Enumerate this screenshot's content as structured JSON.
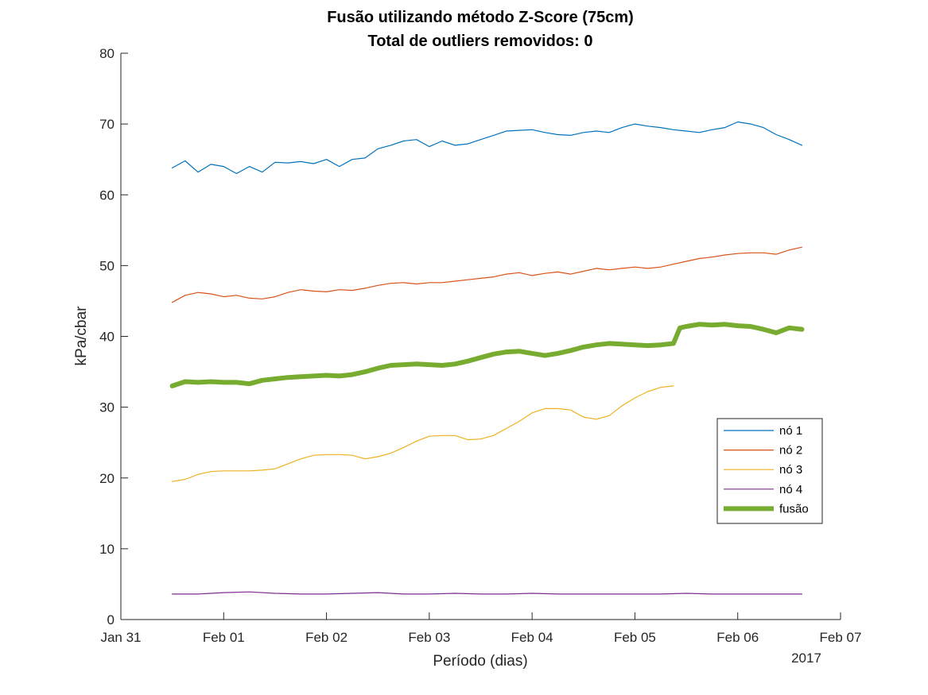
{
  "chart_data": {
    "type": "line",
    "title": [
      "Fusão utilizando método Z-Score (75cm)",
      "Total de outliers removidos: 0"
    ],
    "xlabel": "Período (dias)",
    "ylabel": "kPa/cbar",
    "xlim": [
      "2017-01-31",
      "2017-02-07"
    ],
    "ylim": [
      0,
      80
    ],
    "x_ticks": [
      "Jan 31",
      "Feb 01",
      "Feb 02",
      "Feb 03",
      "Feb 04",
      "Feb 05",
      "Feb 06",
      "Feb 07"
    ],
    "x_tick_dates": [
      "2017-01-31",
      "2017-02-01",
      "2017-02-02",
      "2017-02-03",
      "2017-02-04",
      "2017-02-05",
      "2017-02-06",
      "2017-02-07"
    ],
    "x_year_label": "2017",
    "y_ticks": [
      0,
      10,
      20,
      30,
      40,
      50,
      60,
      70,
      80
    ],
    "grid": false,
    "legend_position": "lower-right",
    "series": [
      {
        "name": "nó 1",
        "color": "#0072BD",
        "width": 1.2,
        "x": [
          "2017-01-31 12:00",
          "2017-01-31 15:00",
          "2017-01-31 18:00",
          "2017-01-31 21:00",
          "2017-02-01 00:00",
          "2017-02-01 03:00",
          "2017-02-01 06:00",
          "2017-02-01 09:00",
          "2017-02-01 12:00",
          "2017-02-01 15:00",
          "2017-02-01 18:00",
          "2017-02-01 21:00",
          "2017-02-02 00:00",
          "2017-02-02 03:00",
          "2017-02-02 06:00",
          "2017-02-02 09:00",
          "2017-02-02 12:00",
          "2017-02-02 15:00",
          "2017-02-02 18:00",
          "2017-02-02 21:00",
          "2017-02-03 00:00",
          "2017-02-03 03:00",
          "2017-02-03 06:00",
          "2017-02-03 09:00",
          "2017-02-03 12:00",
          "2017-02-03 15:00",
          "2017-02-03 18:00",
          "2017-02-03 21:00",
          "2017-02-04 00:00",
          "2017-02-04 03:00",
          "2017-02-04 06:00",
          "2017-02-04 09:00",
          "2017-02-04 12:00",
          "2017-02-04 15:00",
          "2017-02-04 18:00",
          "2017-02-04 21:00",
          "2017-02-05 00:00",
          "2017-02-05 03:00",
          "2017-02-05 06:00",
          "2017-02-05 09:00",
          "2017-02-05 12:00",
          "2017-02-05 15:00",
          "2017-02-05 18:00",
          "2017-02-05 21:00",
          "2017-02-06 00:00",
          "2017-02-06 03:00",
          "2017-02-06 06:00",
          "2017-02-06 09:00",
          "2017-02-06 12:00",
          "2017-02-06 15:00"
        ],
        "y": [
          63.8,
          64.8,
          63.2,
          64.3,
          64.0,
          63.0,
          64.0,
          63.2,
          64.6,
          64.5,
          64.7,
          64.4,
          65.0,
          64.0,
          65.0,
          65.2,
          66.5,
          67.0,
          67.6,
          67.8,
          66.8,
          67.6,
          67.0,
          67.2,
          67.8,
          68.4,
          69.0,
          69.1,
          69.2,
          68.8,
          68.5,
          68.4,
          68.8,
          69.0,
          68.8,
          69.5,
          70.0,
          69.7,
          69.5,
          69.2,
          69.0,
          68.8,
          69.2,
          69.5,
          70.3,
          70.0,
          69.5,
          68.5,
          67.8,
          67.0
        ]
      },
      {
        "name": "nó 2",
        "color": "#D95319",
        "width": 1.2,
        "x": [
          "2017-01-31 12:00",
          "2017-01-31 15:00",
          "2017-01-31 18:00",
          "2017-01-31 21:00",
          "2017-02-01 00:00",
          "2017-02-01 03:00",
          "2017-02-01 06:00",
          "2017-02-01 09:00",
          "2017-02-01 12:00",
          "2017-02-01 15:00",
          "2017-02-01 18:00",
          "2017-02-01 21:00",
          "2017-02-02 00:00",
          "2017-02-02 03:00",
          "2017-02-02 06:00",
          "2017-02-02 09:00",
          "2017-02-02 12:00",
          "2017-02-02 15:00",
          "2017-02-02 18:00",
          "2017-02-02 21:00",
          "2017-02-03 00:00",
          "2017-02-03 03:00",
          "2017-02-03 06:00",
          "2017-02-03 09:00",
          "2017-02-03 12:00",
          "2017-02-03 15:00",
          "2017-02-03 18:00",
          "2017-02-03 21:00",
          "2017-02-04 00:00",
          "2017-02-04 03:00",
          "2017-02-04 06:00",
          "2017-02-04 09:00",
          "2017-02-04 12:00",
          "2017-02-04 15:00",
          "2017-02-04 18:00",
          "2017-02-04 21:00",
          "2017-02-05 00:00",
          "2017-02-05 03:00",
          "2017-02-05 06:00",
          "2017-02-05 09:00",
          "2017-02-05 12:00",
          "2017-02-05 15:00",
          "2017-02-05 18:00",
          "2017-02-05 21:00",
          "2017-02-06 00:00",
          "2017-02-06 03:00",
          "2017-02-06 06:00",
          "2017-02-06 09:00",
          "2017-02-06 12:00",
          "2017-02-06 15:00"
        ],
        "y": [
          44.8,
          45.8,
          46.2,
          46.0,
          45.6,
          45.8,
          45.4,
          45.3,
          45.6,
          46.2,
          46.6,
          46.4,
          46.3,
          46.6,
          46.5,
          46.8,
          47.2,
          47.5,
          47.6,
          47.4,
          47.6,
          47.6,
          47.8,
          48.0,
          48.2,
          48.4,
          48.8,
          49.0,
          48.6,
          48.9,
          49.1,
          48.8,
          49.2,
          49.6,
          49.4,
          49.6,
          49.8,
          49.6,
          49.8,
          50.2,
          50.6,
          51.0,
          51.2,
          51.5,
          51.7,
          51.8,
          51.8,
          51.6,
          52.2,
          52.6
        ]
      },
      {
        "name": "nó 3",
        "color": "#EDB120",
        "width": 1.2,
        "x": [
          "2017-01-31 12:00",
          "2017-01-31 15:00",
          "2017-01-31 18:00",
          "2017-01-31 21:00",
          "2017-02-01 00:00",
          "2017-02-01 03:00",
          "2017-02-01 06:00",
          "2017-02-01 09:00",
          "2017-02-01 12:00",
          "2017-02-01 15:00",
          "2017-02-01 18:00",
          "2017-02-01 21:00",
          "2017-02-02 00:00",
          "2017-02-02 03:00",
          "2017-02-02 06:00",
          "2017-02-02 09:00",
          "2017-02-02 12:00",
          "2017-02-02 15:00",
          "2017-02-02 18:00",
          "2017-02-02 21:00",
          "2017-02-03 00:00",
          "2017-02-03 03:00",
          "2017-02-03 06:00",
          "2017-02-03 09:00",
          "2017-02-03 12:00",
          "2017-02-03 15:00",
          "2017-02-03 18:00",
          "2017-02-03 21:00",
          "2017-02-04 00:00",
          "2017-02-04 03:00",
          "2017-02-04 06:00",
          "2017-02-04 09:00",
          "2017-02-04 12:00",
          "2017-02-04 15:00",
          "2017-02-04 18:00",
          "2017-02-04 21:00",
          "2017-02-05 00:00",
          "2017-02-05 03:00",
          "2017-02-05 06:00",
          "2017-02-05 09:00"
        ],
        "y": [
          19.5,
          19.8,
          20.5,
          20.9,
          21.0,
          21.0,
          21.0,
          21.1,
          21.3,
          22.0,
          22.7,
          23.2,
          23.3,
          23.3,
          23.2,
          22.7,
          23.0,
          23.5,
          24.3,
          25.2,
          25.9,
          26.0,
          26.0,
          25.4,
          25.5,
          26.0,
          27.0,
          28.0,
          29.2,
          29.8,
          29.8,
          29.6,
          28.6,
          28.3,
          28.8,
          30.2,
          31.3,
          32.2,
          32.8,
          33.0
        ]
      },
      {
        "name": "nó 4",
        "color": "#7E2F8E",
        "width": 1.2,
        "x": [
          "2017-01-31 12:00",
          "2017-01-31 18:00",
          "2017-02-01 00:00",
          "2017-02-01 06:00",
          "2017-02-01 12:00",
          "2017-02-01 18:00",
          "2017-02-02 00:00",
          "2017-02-02 06:00",
          "2017-02-02 12:00",
          "2017-02-02 18:00",
          "2017-02-03 00:00",
          "2017-02-03 06:00",
          "2017-02-03 12:00",
          "2017-02-03 18:00",
          "2017-02-04 00:00",
          "2017-02-04 06:00",
          "2017-02-04 12:00",
          "2017-02-04 18:00",
          "2017-02-05 00:00",
          "2017-02-05 06:00",
          "2017-02-05 12:00",
          "2017-02-05 18:00",
          "2017-02-06 00:00",
          "2017-02-06 06:00",
          "2017-02-06 12:00",
          "2017-02-06 15:00"
        ],
        "y": [
          3.6,
          3.6,
          3.8,
          3.9,
          3.7,
          3.6,
          3.6,
          3.7,
          3.8,
          3.6,
          3.6,
          3.7,
          3.6,
          3.6,
          3.7,
          3.6,
          3.6,
          3.6,
          3.6,
          3.6,
          3.7,
          3.6,
          3.6,
          3.6,
          3.6,
          3.6
        ]
      },
      {
        "name": "fusão",
        "color": "#77AC30",
        "width": 6,
        "x": [
          "2017-01-31 12:00",
          "2017-01-31 15:00",
          "2017-01-31 18:00",
          "2017-01-31 21:00",
          "2017-02-01 00:00",
          "2017-02-01 03:00",
          "2017-02-01 06:00",
          "2017-02-01 09:00",
          "2017-02-01 12:00",
          "2017-02-01 15:00",
          "2017-02-01 18:00",
          "2017-02-01 21:00",
          "2017-02-02 00:00",
          "2017-02-02 03:00",
          "2017-02-02 06:00",
          "2017-02-02 09:00",
          "2017-02-02 12:00",
          "2017-02-02 15:00",
          "2017-02-02 18:00",
          "2017-02-02 21:00",
          "2017-02-03 00:00",
          "2017-02-03 03:00",
          "2017-02-03 06:00",
          "2017-02-03 09:00",
          "2017-02-03 12:00",
          "2017-02-03 15:00",
          "2017-02-03 18:00",
          "2017-02-03 21:00",
          "2017-02-04 00:00",
          "2017-02-04 03:00",
          "2017-02-04 06:00",
          "2017-02-04 09:00",
          "2017-02-04 12:00",
          "2017-02-04 15:00",
          "2017-02-04 18:00",
          "2017-02-04 21:00",
          "2017-02-05 00:00",
          "2017-02-05 03:00",
          "2017-02-05 06:00",
          "2017-02-05 09:00",
          "2017-02-05 10:30",
          "2017-02-05 12:00",
          "2017-02-05 15:00",
          "2017-02-05 18:00",
          "2017-02-05 21:00",
          "2017-02-06 00:00",
          "2017-02-06 03:00",
          "2017-02-06 06:00",
          "2017-02-06 09:00",
          "2017-02-06 12:00",
          "2017-02-06 15:00"
        ],
        "y": [
          33.0,
          33.6,
          33.5,
          33.6,
          33.5,
          33.5,
          33.3,
          33.8,
          34.0,
          34.2,
          34.3,
          34.4,
          34.5,
          34.4,
          34.6,
          35.0,
          35.5,
          35.9,
          36.0,
          36.1,
          36.0,
          35.9,
          36.1,
          36.5,
          37.0,
          37.5,
          37.8,
          37.9,
          37.6,
          37.3,
          37.6,
          38.0,
          38.5,
          38.8,
          39.0,
          38.9,
          38.8,
          38.7,
          38.8,
          39.0,
          41.2,
          41.4,
          41.7,
          41.6,
          41.7,
          41.5,
          41.4,
          41.0,
          40.5,
          41.2,
          41.0
        ]
      }
    ]
  }
}
